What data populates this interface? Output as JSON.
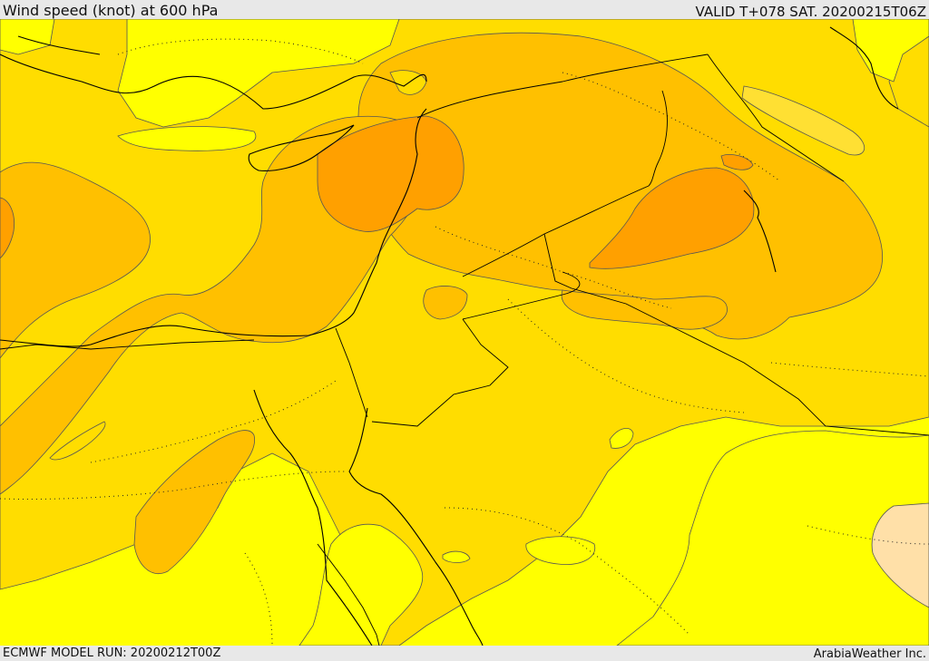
{
  "header": {
    "title": "Wind speed (knot) at 600 hPa",
    "valid": "VALID T+078 SAT. 20200215T06Z"
  },
  "footer": {
    "model_run": "ECMWF MODEL RUN: 20200212T00Z",
    "credit": "ArabiaWeather Inc."
  },
  "colors": {
    "bg_yellow": "#ffff00",
    "light_gold": "#ffdd00",
    "gold": "#ffc000",
    "orange": "#ffa000",
    "peach": "#ffe0a8",
    "contour": "#555555"
  }
}
